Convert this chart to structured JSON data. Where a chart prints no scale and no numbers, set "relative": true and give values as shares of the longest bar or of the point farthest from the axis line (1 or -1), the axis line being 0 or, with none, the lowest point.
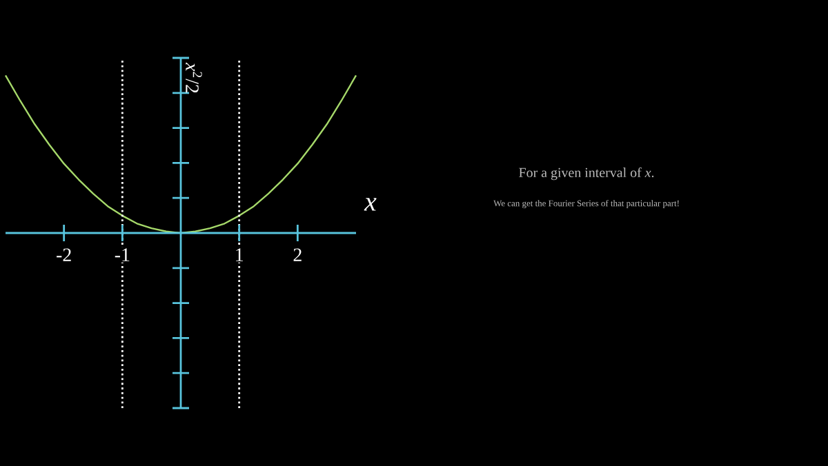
{
  "chart_data": {
    "type": "line",
    "xlabel": "*x*",
    "ylabel": "*x*$^{2}$/2",
    "x": [
      -3,
      -2.75,
      -2.5,
      -2.25,
      -2,
      -1.75,
      -1.5,
      -1.25,
      -1,
      -0.75,
      -0.5,
      -0.25,
      0,
      0.25,
      0.5,
      0.75,
      1,
      1.25,
      1.5,
      1.75,
      2,
      2.25,
      2.5,
      2.75,
      3
    ],
    "series": [
      {
        "color": "#a6d96a",
        "values": [
          1,
          0.84,
          0.69,
          0.56,
          0.44,
          0.34,
          0.25,
          0.17,
          0.11,
          0.06,
          0.03,
          0.01,
          0,
          0.01,
          0.03,
          0.06,
          0.11,
          0.17,
          0.25,
          0.34,
          0.44,
          0.56,
          0.69,
          0.84,
          1
        ]
      }
    ],
    "relative": true,
    "xlim": [
      -3,
      3
    ],
    "xticks": [
      -2,
      -1,
      1,
      2
    ],
    "ref_lines": [
      {
        "axis": "x",
        "value": 0,
        "color": "#58c4dd",
        "line_style": "solid"
      },
      {
        "axis": "x",
        "value": -1,
        "color": "#ffffff",
        "line_style": "dotted"
      },
      {
        "axis": "x",
        "value": 1,
        "color": "#ffffff",
        "line_style": "dotted"
      }
    ],
    "annotations": [
      "For a given interval of *x*.",
      "We can get the Fourier Series of that particular part!"
    ]
  }
}
